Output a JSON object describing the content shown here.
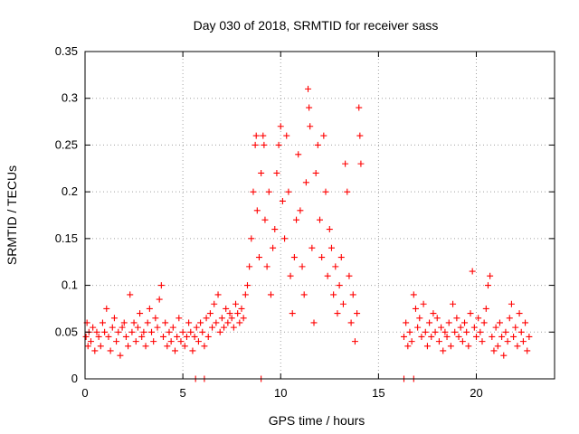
{
  "chart_data": {
    "type": "scatter",
    "title": "Day 030 of 2018, SRMTID for receiver sass",
    "xlabel": "GPS time / hours",
    "ylabel": "SRMTID / TECUs",
    "xlim": [
      0,
      24
    ],
    "ylim": [
      0,
      0.35
    ],
    "x_ticks": [
      0,
      5,
      10,
      15,
      20
    ],
    "x_tick_labels": [
      "0",
      "5",
      "10",
      "15",
      "20"
    ],
    "y_ticks": [
      0,
      0.05,
      0.1,
      0.15,
      0.2,
      0.25,
      0.3,
      0.35
    ],
    "y_tick_labels": [
      "0",
      "0.05",
      "0.1",
      "0.15",
      "0.2",
      "0.25",
      "0.3",
      "0.35"
    ],
    "grid": true,
    "marker": "+",
    "color": "#ff0000",
    "series": [
      {
        "name": "SRMTID",
        "points": [
          [
            0.05,
            0.045
          ],
          [
            0.1,
            0.06
          ],
          [
            0.15,
            0.035
          ],
          [
            0.2,
            0.05
          ],
          [
            0.3,
            0.04
          ],
          [
            0.4,
            0.055
          ],
          [
            0.5,
            0.03
          ],
          [
            0.6,
            0.05
          ],
          [
            0.7,
            0.045
          ],
          [
            0.8,
            0.035
          ],
          [
            0.9,
            0.06
          ],
          [
            1.0,
            0.05
          ],
          [
            1.1,
            0.075
          ],
          [
            1.2,
            0.045
          ],
          [
            1.3,
            0.03
          ],
          [
            1.4,
            0.055
          ],
          [
            1.5,
            0.065
          ],
          [
            1.6,
            0.04
          ],
          [
            1.7,
            0.05
          ],
          [
            1.8,
            0.025
          ],
          [
            1.9,
            0.055
          ],
          [
            2.0,
            0.06
          ],
          [
            2.1,
            0.045
          ],
          [
            2.2,
            0.035
          ],
          [
            2.3,
            0.09
          ],
          [
            2.4,
            0.05
          ],
          [
            2.5,
            0.06
          ],
          [
            2.6,
            0.04
          ],
          [
            2.7,
            0.055
          ],
          [
            2.8,
            0.07
          ],
          [
            2.9,
            0.045
          ],
          [
            3.0,
            0.05
          ],
          [
            3.1,
            0.035
          ],
          [
            3.2,
            0.06
          ],
          [
            3.3,
            0.075
          ],
          [
            3.4,
            0.05
          ],
          [
            3.5,
            0.04
          ],
          [
            3.6,
            0.065
          ],
          [
            3.7,
            0.055
          ],
          [
            3.8,
            0.085
          ],
          [
            3.9,
            0.1
          ],
          [
            4.0,
            0.045
          ],
          [
            4.1,
            0.06
          ],
          [
            4.2,
            0.035
          ],
          [
            4.3,
            0.05
          ],
          [
            4.4,
            0.04
          ],
          [
            4.5,
            0.055
          ],
          [
            4.6,
            0.03
          ],
          [
            4.7,
            0.045
          ],
          [
            4.8,
            0.065
          ],
          [
            4.9,
            0.04
          ],
          [
            5.0,
            0.05
          ],
          [
            5.1,
            0.035
          ],
          [
            5.2,
            0.045
          ],
          [
            5.3,
            0.06
          ],
          [
            5.4,
            0.05
          ],
          [
            5.5,
            0.03
          ],
          [
            5.6,
            0.045
          ],
          [
            5.7,
            0.055
          ],
          [
            5.8,
            0.04
          ],
          [
            5.9,
            0.06
          ],
          [
            6.0,
            0.05
          ],
          [
            6.1,
            0.035
          ],
          [
            6.2,
            0.065
          ],
          [
            6.3,
            0.045
          ],
          [
            6.4,
            0.07
          ],
          [
            6.5,
            0.055
          ],
          [
            6.6,
            0.08
          ],
          [
            6.7,
            0.06
          ],
          [
            6.8,
            0.09
          ],
          [
            6.9,
            0.05
          ],
          [
            7.0,
            0.065
          ],
          [
            7.1,
            0.055
          ],
          [
            7.2,
            0.075
          ],
          [
            7.3,
            0.06
          ],
          [
            7.4,
            0.07
          ],
          [
            7.5,
            0.065
          ],
          [
            7.6,
            0.055
          ],
          [
            7.7,
            0.08
          ],
          [
            7.8,
            0.07
          ],
          [
            7.9,
            0.06
          ],
          [
            8.0,
            0.075
          ],
          [
            8.1,
            0.065
          ],
          [
            8.2,
            0.09
          ],
          [
            8.3,
            0.1
          ],
          [
            8.4,
            0.12
          ],
          [
            8.5,
            0.15
          ],
          [
            8.6,
            0.2
          ],
          [
            8.7,
            0.25
          ],
          [
            8.75,
            0.26
          ],
          [
            8.8,
            0.18
          ],
          [
            8.9,
            0.13
          ],
          [
            9.0,
            0.22
          ],
          [
            9.1,
            0.26
          ],
          [
            9.15,
            0.25
          ],
          [
            9.2,
            0.17
          ],
          [
            9.3,
            0.12
          ],
          [
            9.4,
            0.2
          ],
          [
            9.5,
            0.09
          ],
          [
            9.6,
            0.14
          ],
          [
            9.7,
            0.16
          ],
          [
            9.8,
            0.22
          ],
          [
            9.9,
            0.25
          ],
          [
            10.0,
            0.27
          ],
          [
            10.1,
            0.19
          ],
          [
            10.2,
            0.15
          ],
          [
            10.3,
            0.26
          ],
          [
            10.4,
            0.2
          ],
          [
            10.5,
            0.11
          ],
          [
            10.6,
            0.07
          ],
          [
            10.7,
            0.13
          ],
          [
            10.8,
            0.17
          ],
          [
            10.9,
            0.24
          ],
          [
            11.0,
            0.18
          ],
          [
            11.1,
            0.12
          ],
          [
            11.2,
            0.09
          ],
          [
            11.3,
            0.21
          ],
          [
            11.4,
            0.31
          ],
          [
            11.45,
            0.29
          ],
          [
            11.5,
            0.27
          ],
          [
            11.6,
            0.14
          ],
          [
            11.7,
            0.06
          ],
          [
            11.8,
            0.22
          ],
          [
            11.9,
            0.25
          ],
          [
            12.0,
            0.17
          ],
          [
            12.1,
            0.13
          ],
          [
            12.2,
            0.26
          ],
          [
            12.3,
            0.2
          ],
          [
            12.4,
            0.11
          ],
          [
            12.5,
            0.16
          ],
          [
            12.6,
            0.14
          ],
          [
            12.7,
            0.09
          ],
          [
            12.8,
            0.12
          ],
          [
            12.9,
            0.07
          ],
          [
            13.0,
            0.1
          ],
          [
            13.1,
            0.13
          ],
          [
            13.2,
            0.08
          ],
          [
            13.3,
            0.23
          ],
          [
            13.4,
            0.2
          ],
          [
            13.5,
            0.11
          ],
          [
            13.6,
            0.06
          ],
          [
            13.7,
            0.09
          ],
          [
            13.8,
            0.04
          ],
          [
            13.9,
            0.07
          ],
          [
            14.0,
            0.29
          ],
          [
            14.05,
            0.26
          ],
          [
            14.1,
            0.23
          ],
          [
            16.3,
            0.045
          ],
          [
            16.4,
            0.06
          ],
          [
            16.5,
            0.035
          ],
          [
            16.6,
            0.05
          ],
          [
            16.7,
            0.04
          ],
          [
            16.8,
            0.09
          ],
          [
            16.9,
            0.075
          ],
          [
            17.0,
            0.055
          ],
          [
            17.1,
            0.065
          ],
          [
            17.2,
            0.045
          ],
          [
            17.3,
            0.08
          ],
          [
            17.4,
            0.05
          ],
          [
            17.5,
            0.035
          ],
          [
            17.6,
            0.06
          ],
          [
            17.7,
            0.045
          ],
          [
            17.8,
            0.07
          ],
          [
            17.9,
            0.05
          ],
          [
            18.0,
            0.065
          ],
          [
            18.1,
            0.04
          ],
          [
            18.2,
            0.055
          ],
          [
            18.3,
            0.03
          ],
          [
            18.4,
            0.05
          ],
          [
            18.5,
            0.045
          ],
          [
            18.6,
            0.06
          ],
          [
            18.7,
            0.035
          ],
          [
            18.8,
            0.08
          ],
          [
            18.9,
            0.05
          ],
          [
            19.0,
            0.065
          ],
          [
            19.1,
            0.045
          ],
          [
            19.2,
            0.055
          ],
          [
            19.3,
            0.04
          ],
          [
            19.4,
            0.06
          ],
          [
            19.5,
            0.05
          ],
          [
            19.6,
            0.035
          ],
          [
            19.7,
            0.07
          ],
          [
            19.8,
            0.115
          ],
          [
            19.9,
            0.055
          ],
          [
            20.0,
            0.045
          ],
          [
            20.1,
            0.065
          ],
          [
            20.2,
            0.05
          ],
          [
            20.3,
            0.04
          ],
          [
            20.4,
            0.06
          ],
          [
            20.5,
            0.075
          ],
          [
            20.6,
            0.1
          ],
          [
            20.7,
            0.11
          ],
          [
            20.8,
            0.045
          ],
          [
            20.9,
            0.03
          ],
          [
            21.0,
            0.055
          ],
          [
            21.1,
            0.035
          ],
          [
            21.2,
            0.06
          ],
          [
            21.3,
            0.045
          ],
          [
            21.4,
            0.025
          ],
          [
            21.5,
            0.05
          ],
          [
            21.6,
            0.04
          ],
          [
            21.7,
            0.065
          ],
          [
            21.8,
            0.08
          ],
          [
            21.9,
            0.045
          ],
          [
            22.0,
            0.055
          ],
          [
            22.1,
            0.035
          ],
          [
            22.2,
            0.07
          ],
          [
            22.3,
            0.05
          ],
          [
            22.4,
            0.04
          ],
          [
            22.5,
            0.06
          ],
          [
            22.6,
            0.03
          ],
          [
            22.7,
            0.045
          ],
          [
            5.65,
            0.0
          ],
          [
            6.1,
            0.0
          ],
          [
            9.0,
            0.0
          ],
          [
            16.3,
            0.0
          ],
          [
            16.8,
            0.0
          ]
        ]
      }
    ]
  }
}
